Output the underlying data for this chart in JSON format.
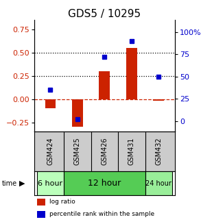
{
  "title": "GDS5 / 10295",
  "categories": [
    "GSM424",
    "GSM425",
    "GSM426",
    "GSM431",
    "GSM432"
  ],
  "log_ratio": [
    -0.1,
    -0.3,
    0.3,
    0.55,
    -0.02
  ],
  "percentile_rank": [
    35,
    2,
    72,
    90,
    50
  ],
  "left_ylim": [
    -0.35,
    0.85
  ],
  "left_yticks": [
    -0.25,
    0.0,
    0.25,
    0.5,
    0.75
  ],
  "right_ylim": [
    -11.67,
    113.33
  ],
  "right_yticks": [
    0,
    25,
    50,
    75,
    100
  ],
  "bar_color": "#cc2200",
  "dot_color": "#0000cc",
  "dotted_lines": [
    0.25,
    0.5
  ],
  "span_defs": [
    {
      "xlims": [
        -0.5,
        0.5
      ],
      "color": "#bbffbb",
      "label": "6 hour",
      "fontsize": 8
    },
    {
      "xlims": [
        0.5,
        3.5
      ],
      "color": "#55cc55",
      "label": "12 hour",
      "fontsize": 9
    },
    {
      "xlims": [
        3.5,
        4.5
      ],
      "color": "#99ee99",
      "label": "24 hour",
      "fontsize": 7
    }
  ],
  "legend_log_ratio": "log ratio",
  "legend_percentile": "percentile rank within the sample",
  "left_tick_color": "#cc2200",
  "right_tick_color": "#0000cc",
  "title_fontsize": 11,
  "tick_fontsize": 8,
  "bar_width": 0.4,
  "gsm_bg": "#cccccc",
  "gsm_fontsize": 7
}
